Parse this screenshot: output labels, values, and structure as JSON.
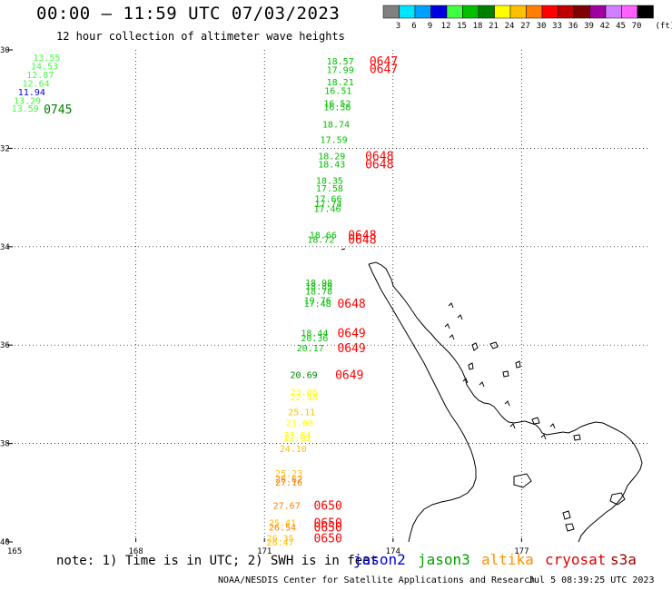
{
  "header": {
    "title": "00:00 – 11:59 UTC 07/03/2023",
    "subtitle": "12 hour collection of altimeter wave heights"
  },
  "legend": {
    "unit": "(ft)",
    "bins": [
      {
        "label": "3",
        "color": "#808080"
      },
      {
        "label": "6",
        "color": "#00e5ff"
      },
      {
        "label": "9",
        "color": "#00a0ff"
      },
      {
        "label": "12",
        "color": "#0000e0"
      },
      {
        "label": "15",
        "color": "#40ff40"
      },
      {
        "label": "18",
        "color": "#00c000"
      },
      {
        "label": "21",
        "color": "#008000"
      },
      {
        "label": "24",
        "color": "#ffff00"
      },
      {
        "label": "27",
        "color": "#ffc000"
      },
      {
        "label": "30",
        "color": "#ff8000"
      },
      {
        "label": "33",
        "color": "#ff0000"
      },
      {
        "label": "36",
        "color": "#c00000"
      },
      {
        "label": "39",
        "color": "#800000"
      },
      {
        "label": "42",
        "color": "#a000a0"
      },
      {
        "label": "45",
        "color": "#d080ff"
      },
      {
        "label": "70",
        "color": "#ff60ff"
      },
      {
        "label": "",
        "color": "#000000"
      }
    ]
  },
  "map": {
    "lon_range": [
      165,
      180
    ],
    "lat_range": [
      -30,
      -40
    ],
    "x_ticks": [
      "165",
      "168",
      "171",
      "174",
      "177"
    ],
    "y_ticks": [
      "30",
      "32",
      "34",
      "36",
      "38",
      "40"
    ],
    "readings": [
      {
        "lon": 165.6,
        "lat": -30.15,
        "text": "13.55",
        "color": "#40ff40"
      },
      {
        "lon": 165.55,
        "lat": -30.32,
        "text": "14.53",
        "color": "#40ff40"
      },
      {
        "lon": 165.45,
        "lat": -30.5,
        "text": "12.87",
        "color": "#40ff40"
      },
      {
        "lon": 165.35,
        "lat": -30.67,
        "text": "12.64",
        "color": "#40ff40"
      },
      {
        "lon": 165.25,
        "lat": -30.85,
        "text": "11.94",
        "color": "#0000e0"
      },
      {
        "lon": 165.15,
        "lat": -31.02,
        "text": "13.29",
        "color": "#40ff40"
      },
      {
        "lon": 165.1,
        "lat": -31.18,
        "text": "13.59",
        "color": "#40ff40"
      },
      {
        "lon": 172.45,
        "lat": -30.22,
        "text": "18.57",
        "color": "#00c000"
      },
      {
        "lon": 172.45,
        "lat": -30.4,
        "text": "17.99",
        "color": "#00c000"
      },
      {
        "lon": 172.45,
        "lat": -30.65,
        "text": "18.21",
        "color": "#00c000"
      },
      {
        "lon": 172.4,
        "lat": -30.82,
        "text": "16.51",
        "color": "#00c000"
      },
      {
        "lon": 172.38,
        "lat": -31.08,
        "text": "16.52",
        "color": "#00c000"
      },
      {
        "lon": 172.38,
        "lat": -31.15,
        "text": "16.58",
        "color": "#00c000"
      },
      {
        "lon": 172.35,
        "lat": -31.5,
        "text": "18.74",
        "color": "#00c000"
      },
      {
        "lon": 172.3,
        "lat": -31.82,
        "text": "17.59",
        "color": "#00c000"
      },
      {
        "lon": 172.25,
        "lat": -32.15,
        "text": "18.29",
        "color": "#00c000"
      },
      {
        "lon": 172.25,
        "lat": -32.32,
        "text": "18.43",
        "color": "#00c000"
      },
      {
        "lon": 172.2,
        "lat": -32.65,
        "text": "18.35",
        "color": "#00c000"
      },
      {
        "lon": 172.2,
        "lat": -32.8,
        "text": "17.58",
        "color": "#00c000"
      },
      {
        "lon": 172.17,
        "lat": -33.02,
        "text": "17.66",
        "color": "#00c000"
      },
      {
        "lon": 172.17,
        "lat": -33.12,
        "text": "17.74",
        "color": "#00c000"
      },
      {
        "lon": 172.15,
        "lat": -33.22,
        "text": "17.46",
        "color": "#00c000"
      },
      {
        "lon": 172.05,
        "lat": -33.75,
        "text": "18.66",
        "color": "#00c000"
      },
      {
        "lon": 172.0,
        "lat": -33.85,
        "text": "18.72",
        "color": "#00c000"
      },
      {
        "lon": 171.95,
        "lat": -34.72,
        "text": "18.98",
        "color": "#00c000"
      },
      {
        "lon": 171.95,
        "lat": -34.8,
        "text": "18.89",
        "color": "#00c000"
      },
      {
        "lon": 171.95,
        "lat": -34.9,
        "text": "18.78",
        "color": "#00c000"
      },
      {
        "lon": 171.92,
        "lat": -35.08,
        "text": "19.76",
        "color": "#00c000"
      },
      {
        "lon": 171.92,
        "lat": -35.15,
        "text": "17.48",
        "color": "#00c000"
      },
      {
        "lon": 171.85,
        "lat": -35.75,
        "text": "18.44",
        "color": "#00c000"
      },
      {
        "lon": 171.85,
        "lat": -35.85,
        "text": "20.36",
        "color": "#00c000"
      },
      {
        "lon": 171.75,
        "lat": -36.05,
        "text": "20.17",
        "color": "#00c000"
      },
      {
        "lon": 171.6,
        "lat": -36.6,
        "text": "20.69",
        "color": "#008000"
      },
      {
        "lon": 171.6,
        "lat": -36.95,
        "text": "23.06",
        "color": "#ffff00"
      },
      {
        "lon": 171.6,
        "lat": -37.05,
        "text": "22.98",
        "color": "#ffff00"
      },
      {
        "lon": 171.55,
        "lat": -37.35,
        "text": "25.11",
        "color": "#ffc000"
      },
      {
        "lon": 171.5,
        "lat": -37.57,
        "text": "21.60",
        "color": "#ffff00"
      },
      {
        "lon": 171.45,
        "lat": -37.82,
        "text": "23.64",
        "color": "#ffff00"
      },
      {
        "lon": 171.45,
        "lat": -37.88,
        "text": "22.62",
        "color": "#ffff00"
      },
      {
        "lon": 171.35,
        "lat": -38.1,
        "text": "24.10",
        "color": "#ffc000"
      },
      {
        "lon": 171.25,
        "lat": -38.6,
        "text": "25.23",
        "color": "#ffc000"
      },
      {
        "lon": 171.25,
        "lat": -38.72,
        "text": "26.62",
        "color": "#ff8000"
      },
      {
        "lon": 171.25,
        "lat": -38.78,
        "text": "27.16",
        "color": "#ff8000"
      },
      {
        "lon": 171.2,
        "lat": -39.25,
        "text": "27.67",
        "color": "#ff8000"
      },
      {
        "lon": 171.1,
        "lat": -39.6,
        "text": "25.41",
        "color": "#ffc000"
      },
      {
        "lon": 171.1,
        "lat": -39.7,
        "text": "26.54",
        "color": "#ff8000"
      },
      {
        "lon": 171.05,
        "lat": -39.92,
        "text": "26.35",
        "color": "#ffc000"
      },
      {
        "lon": 171.05,
        "lat": -40.0,
        "text": "26.47",
        "color": "#ffc000"
      }
    ],
    "times": [
      {
        "lon": 165.85,
        "lat": -31.2,
        "text": "0745",
        "color": "#008000"
      },
      {
        "lon": 173.45,
        "lat": -30.22,
        "text": "0647",
        "color": "#ff0000"
      },
      {
        "lon": 173.45,
        "lat": -30.38,
        "text": "0647",
        "color": "#ff0000"
      },
      {
        "lon": 173.35,
        "lat": -32.15,
        "text": "0648",
        "color": "#ff0000"
      },
      {
        "lon": 173.35,
        "lat": -32.32,
        "text": "0648",
        "color": "#ff0000"
      },
      {
        "lon": 172.95,
        "lat": -33.75,
        "text": "0648",
        "color": "#ff0000"
      },
      {
        "lon": 172.95,
        "lat": -33.85,
        "text": "0648",
        "color": "#ff0000"
      },
      {
        "lon": 172.7,
        "lat": -35.15,
        "text": "0648",
        "color": "#ff0000"
      },
      {
        "lon": 172.7,
        "lat": -35.75,
        "text": "0649",
        "color": "#ff0000"
      },
      {
        "lon": 172.7,
        "lat": -36.05,
        "text": "0649",
        "color": "#ff0000"
      },
      {
        "lon": 172.65,
        "lat": -36.6,
        "text": "0649",
        "color": "#ff0000"
      },
      {
        "lon": 172.15,
        "lat": -39.25,
        "text": "0650",
        "color": "#ff0000"
      },
      {
        "lon": 172.15,
        "lat": -39.6,
        "text": "0650",
        "color": "#ff0000"
      },
      {
        "lon": 172.15,
        "lat": -39.7,
        "text": "0650",
        "color": "#ff0000"
      },
      {
        "lon": 172.15,
        "lat": -39.92,
        "text": "0650",
        "color": "#ff0000"
      }
    ]
  },
  "footer": {
    "note": "note: 1) Time is in UTC; 2) SWH is in feet",
    "satellites": [
      {
        "name": "jason2",
        "color": "#0000e0"
      },
      {
        "name": "jason3",
        "color": "#00a000"
      },
      {
        "name": "altika",
        "color": "#ff9000"
      },
      {
        "name": "cryosat",
        "color": "#e00000"
      },
      {
        "name": "s3a",
        "color": "#a00000"
      }
    ],
    "credit": "NOAA/NESDIS Center for Satellite Applications and Research",
    "generated": "Jul 5 08:39:25 UTC 2023"
  }
}
